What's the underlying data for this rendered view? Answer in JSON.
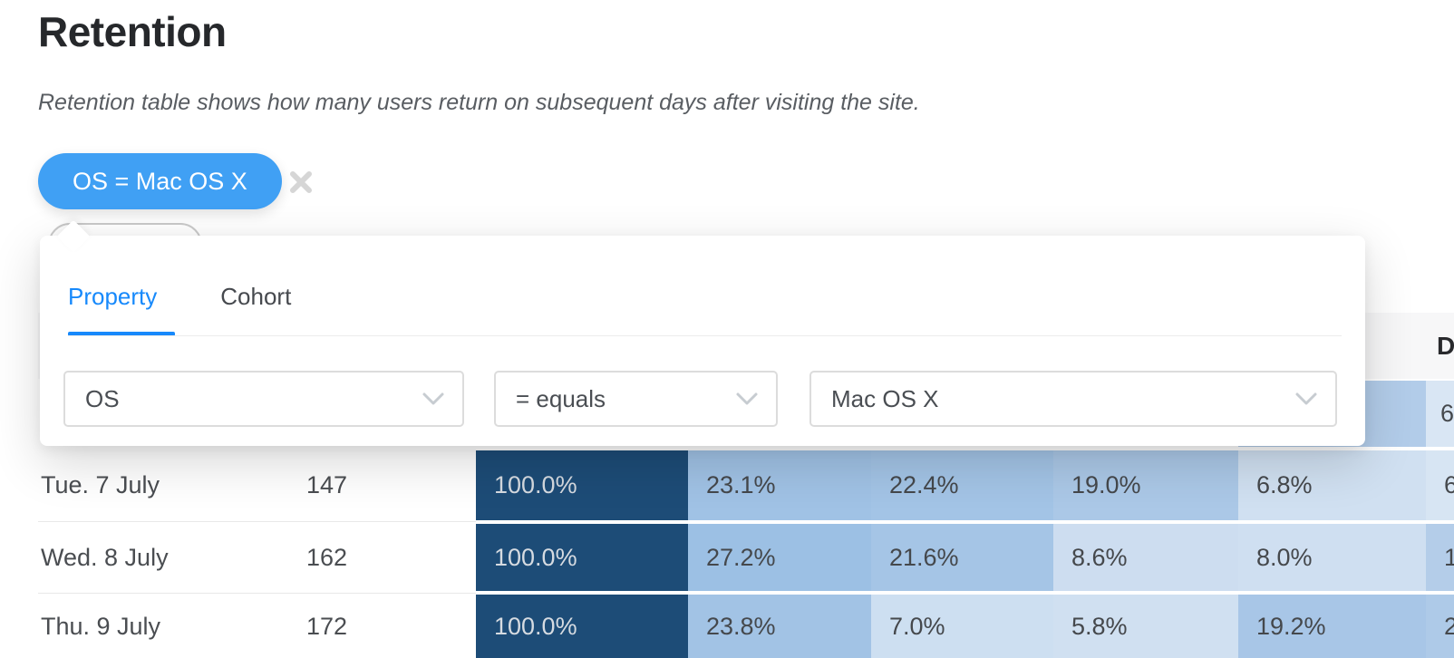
{
  "page": {
    "title": "Retention",
    "subtitle": "Retention table shows how many users return on subsequent days after visiting the site."
  },
  "filter_pill": {
    "label": "OS = Mac OS X",
    "bg": "#40a0f4"
  },
  "popover": {
    "accent": "#1789fb",
    "tabs": [
      {
        "label": "Property",
        "active": true
      },
      {
        "label": "Cohort",
        "active": false
      }
    ],
    "fields": [
      {
        "value": "OS"
      },
      {
        "value": "= equals"
      },
      {
        "value": "Mac OS X"
      }
    ]
  },
  "table": {
    "visible_header_label": "D",
    "dark_cell_bg": "#1d4c77",
    "dark_cell_fg": "#d6dbe1",
    "partial_row": {
      "cells": [
        {
          "text": "",
          "bg": "#b2cce9"
        },
        {
          "text": "6",
          "bg": "#d9e6f4"
        }
      ]
    },
    "rows": [
      {
        "date": "Tue. 7 July",
        "users": "147",
        "cells": [
          {
            "text": "100.0%",
            "bg": "#1d4c77",
            "fg": "#d6dbe1"
          },
          {
            "text": "23.1%",
            "bg": "#a0c2e5"
          },
          {
            "text": "22.4%",
            "bg": "#a3c4e6"
          },
          {
            "text": "19.0%",
            "bg": "#abc8e7"
          },
          {
            "text": "6.8%",
            "bg": "#d0e0f1"
          },
          {
            "text": "6",
            "bg": "#d7e5f3"
          }
        ]
      },
      {
        "date": "Wed. 8 July",
        "users": "162",
        "cells": [
          {
            "text": "100.0%",
            "bg": "#1d4c77",
            "fg": "#d6dbe1"
          },
          {
            "text": "27.2%",
            "bg": "#9cc0e4"
          },
          {
            "text": "21.6%",
            "bg": "#a5c5e6"
          },
          {
            "text": "8.6%",
            "bg": "#cdddf0"
          },
          {
            "text": "8.0%",
            "bg": "#cfdff1"
          },
          {
            "text": "1",
            "bg": "#b4cde9"
          }
        ]
      },
      {
        "date": "Thu. 9 July",
        "users": "172",
        "cells": [
          {
            "text": "100.0%",
            "bg": "#1d4c77",
            "fg": "#d6dbe1"
          },
          {
            "text": "23.8%",
            "bg": "#a2c3e5"
          },
          {
            "text": "7.0%",
            "bg": "#cddff1"
          },
          {
            "text": "5.8%",
            "bg": "#d0e0f1"
          },
          {
            "text": "19.2%",
            "bg": "#a8c6e7"
          },
          {
            "text": "2",
            "bg": "#aecae8"
          }
        ]
      }
    ]
  }
}
